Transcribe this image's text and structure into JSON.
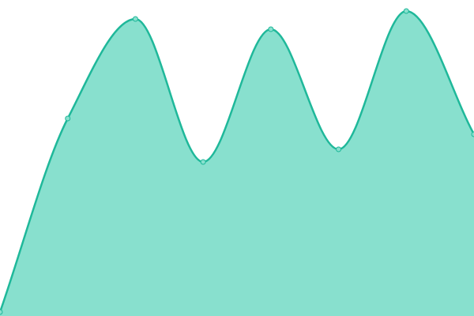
{
  "chart_data": {
    "type": "area",
    "categories": [
      null,
      null,
      null,
      null,
      null,
      null,
      null,
      null
    ],
    "values": [
      5,
      250,
      376,
      195,
      363,
      211,
      386,
      230
    ],
    "color": "#1fb89a",
    "fill": "#88e0ce",
    "markers": true,
    "ylim": [
      0,
      400
    ]
  }
}
